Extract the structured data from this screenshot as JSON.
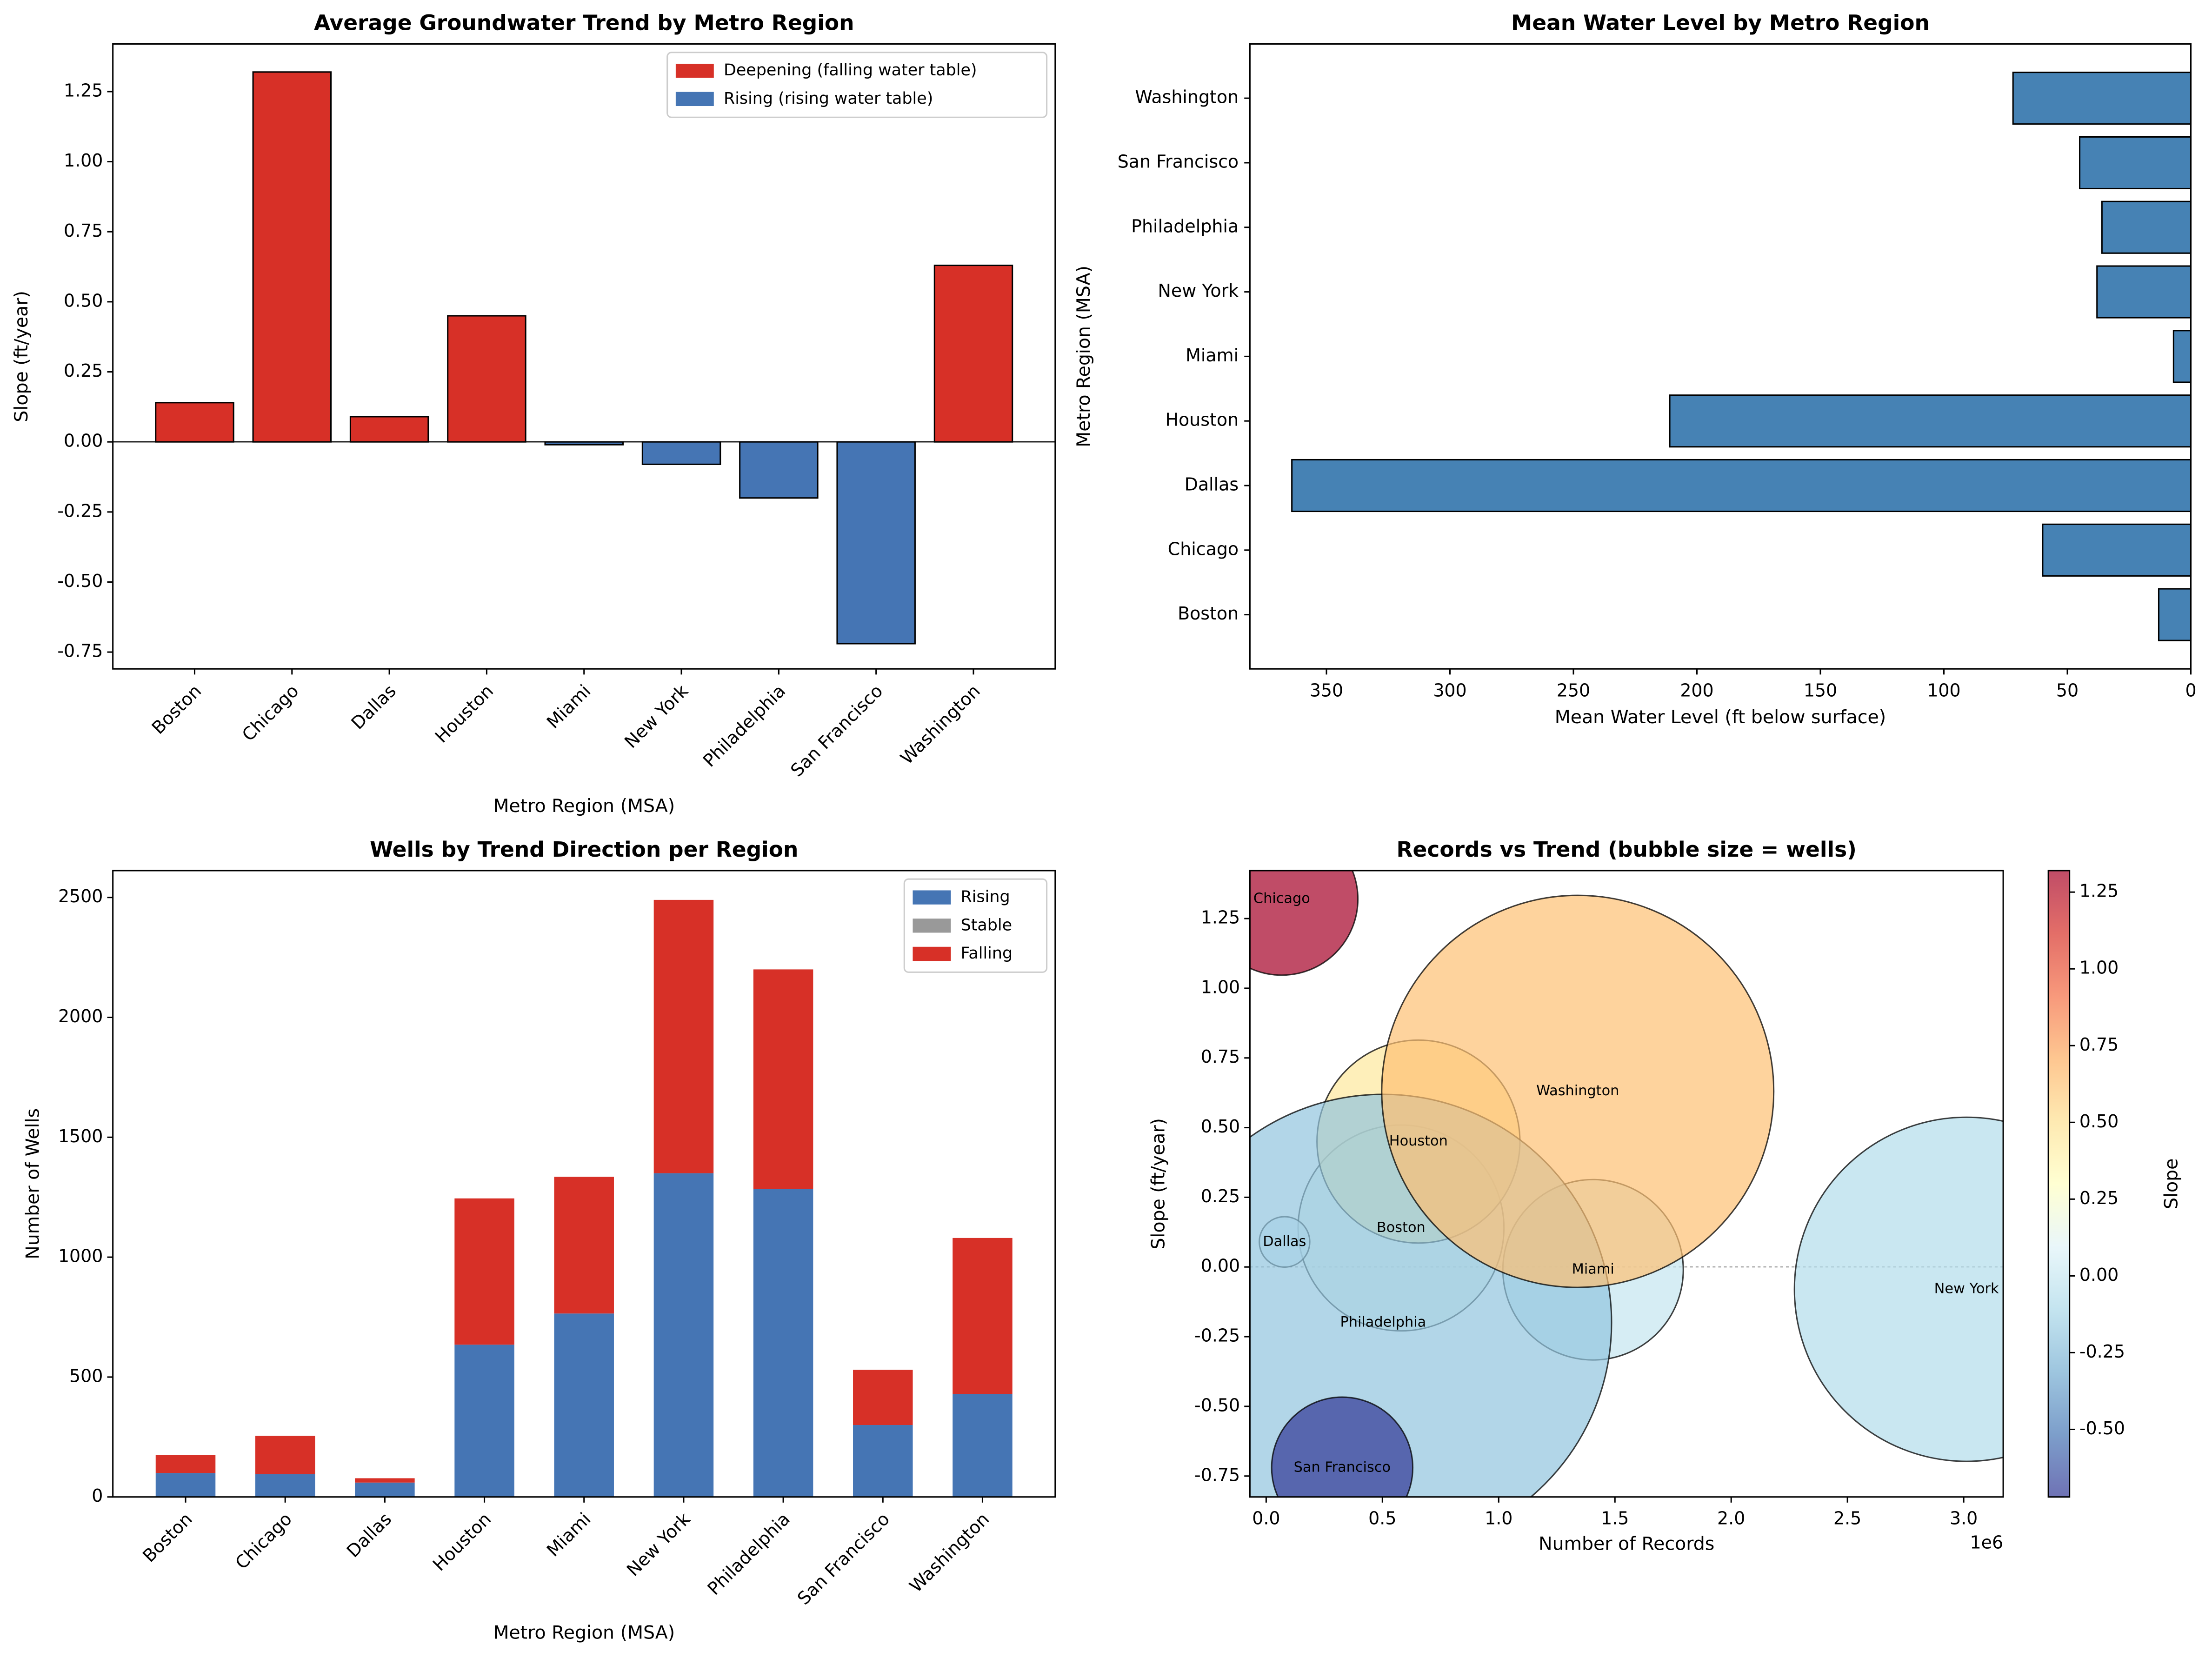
{
  "chart_data": [
    {
      "type": "bar",
      "title": "Average Groundwater Trend by Metro Region",
      "xlabel": "Metro Region (MSA)",
      "ylabel": "Slope (ft/year)",
      "categories": [
        "Boston",
        "Chicago",
        "Dallas",
        "Houston",
        "Miami",
        "New York",
        "Philadelphia",
        "San Francisco",
        "Washington"
      ],
      "values": [
        0.14,
        1.32,
        0.09,
        0.45,
        -0.01,
        -0.08,
        -0.2,
        -0.72,
        0.63
      ],
      "legend": [
        {
          "name": "Deepening (falling water table)",
          "color": "#d73027"
        },
        {
          "name": "Rising (rising water table)",
          "color": "#4575b4"
        }
      ],
      "ylim": [
        -0.81,
        1.42
      ],
      "yticks": [
        -0.75,
        {
          "value": -0.5,
          "label": "-0.50"
        },
        -0.25,
        {
          "value": 0,
          "label": "0.00"
        },
        0.25,
        {
          "value": 0.5,
          "label": "0.50"
        },
        0.75,
        {
          "value": 1,
          "label": "1.00"
        },
        1.25
      ],
      "grid": false,
      "legend_loc": "upper-right"
    },
    {
      "type": "barh",
      "title": "Mean Water Level by Metro Region",
      "xlabel": "Mean Water Level (ft below surface)",
      "ylabel": "Metro Region (MSA)",
      "categories": [
        "Boston",
        "Chicago",
        "Dallas",
        "Houston",
        "Miami",
        "New York",
        "Philadelphia",
        "San Francisco",
        "Washington"
      ],
      "values": [
        13,
        60,
        364,
        211,
        7,
        38,
        36,
        45,
        72
      ],
      "color": "#4682b4",
      "xlim": [
        381,
        0
      ],
      "xticks": [
        0,
        50,
        100,
        150,
        200,
        250,
        300,
        350
      ],
      "grid": false
    },
    {
      "type": "bar",
      "title": "Wells by Trend Direction per Region",
      "xlabel": "Metro Region (MSA)",
      "ylabel": "Number of Wells",
      "categories": [
        "Boston",
        "Chicago",
        "Dallas",
        "Houston",
        "Miami",
        "New York",
        "Philadelphia",
        "San Francisco",
        "Washington"
      ],
      "series": [
        {
          "name": "Rising",
          "color": "#4575b4",
          "values": [
            100,
            95,
            60,
            635,
            765,
            1350,
            1285,
            300,
            430
          ]
        },
        {
          "name": "Stable",
          "color": "#999999",
          "values": [
            0,
            0,
            0,
            0,
            0,
            0,
            0,
            0,
            0
          ]
        },
        {
          "name": "Falling",
          "color": "#d73027",
          "values": [
            75,
            160,
            18,
            610,
            570,
            1140,
            915,
            230,
            650
          ]
        }
      ],
      "stacked": true,
      "ylim": [
        0,
        2612
      ],
      "yticks": [
        0,
        500,
        1000,
        1500,
        2000,
        2500
      ],
      "grid": false,
      "legend_loc": "upper-right"
    },
    {
      "type": "bubble",
      "title": "Records vs Trend (bubble size = wells)",
      "xlabel": "Number of Records",
      "ylabel": "Slope (ft/year)",
      "x_offset_label": "1e6",
      "labels": [
        "Boston",
        "Chicago",
        "Dallas",
        "Houston",
        "Miami",
        "New York",
        "Philadelphia",
        "San Francisco",
        "Washington"
      ],
      "x": [
        580000,
        67000,
        79000,
        655000,
        1406000,
        3012000,
        503000,
        327000,
        1340000
      ],
      "values": [
        0.14,
        1.32,
        0.09,
        0.45,
        -0.01,
        -0.08,
        -0.2,
        -0.72,
        0.63
      ],
      "sizes": [
        466,
        255,
        28,
        453,
        358,
        1302,
        2295,
        219,
        1690
      ],
      "xlim": [
        -70000,
        3170000
      ],
      "ylim": [
        -0.825,
        1.422
      ],
      "xticks": [
        {
          "value": 0,
          "label": "0.0"
        },
        {
          "value": 500000,
          "label": "0.5"
        },
        {
          "value": 1000000,
          "label": "1.0"
        },
        {
          "value": 1500000,
          "label": "1.5"
        },
        {
          "value": 2000000,
          "label": "2.0"
        },
        {
          "value": 2500000,
          "label": "2.5"
        },
        {
          "value": 3000000,
          "label": "3.0"
        }
      ],
      "yticks": [
        -0.75,
        {
          "value": -0.5,
          "label": "-0.50"
        },
        -0.25,
        {
          "value": 0,
          "label": "0.00"
        },
        0.25,
        {
          "value": 0.5,
          "label": "0.50"
        },
        0.75,
        {
          "value": 1,
          "label": "1.00"
        },
        1.25
      ],
      "colorbar_label": "Slope",
      "clim": [
        -0.72,
        1.32
      ],
      "cticks": [
        {
          "value": -0.5,
          "label": "-0.50"
        },
        -0.25,
        {
          "value": 0,
          "label": "0.00"
        },
        0.25,
        {
          "value": 0.5,
          "label": "0.50"
        },
        0.75,
        {
          "value": 1,
          "label": "1.00"
        },
        1.25
      ],
      "colormap": [
        "#313695",
        "#4575b4",
        "#74add1",
        "#abd9e9",
        "#e0f3f8",
        "#ffffbf",
        "#fee090",
        "#fdae61",
        "#f46d43",
        "#d73027",
        "#a50026"
      ],
      "alpha": 0.7,
      "grid": false
    }
  ]
}
